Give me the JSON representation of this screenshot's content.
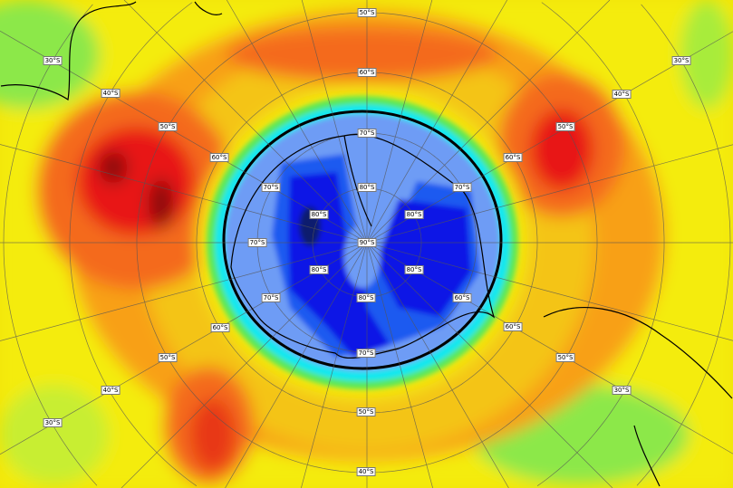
{
  "map": {
    "projection": "south-polar-stereographic",
    "field": "ozone column",
    "colors": {
      "deep_blue": "#0a1a6e",
      "dark_blue": "#0a14e6",
      "blue": "#1e5af0",
      "light_blue": "#6e9cf5",
      "cyan": "#10e8f0",
      "green": "#5ae85a",
      "yellow": "#f4ec10",
      "orange": "#f8a018",
      "dark_orange": "#f46a1a",
      "red": "#e81818",
      "dark_red": "#8a1010",
      "contour": "#000000"
    },
    "latitude_labels": [
      "50°S",
      "60°S",
      "70°S",
      "80°S",
      "90°S",
      "80°S",
      "80°S",
      "80°S",
      "80°S",
      "80°S",
      "70°S",
      "70°S",
      "70°S",
      "70°S",
      "70°S",
      "60°S",
      "60°S",
      "60°S",
      "60°S",
      "60°S",
      "50°S",
      "50°S",
      "50°S",
      "50°S",
      "50°S",
      "40°S",
      "40°S",
      "40°S",
      "40°S",
      "30°S",
      "30°S",
      "30°S",
      "30°S"
    ]
  }
}
